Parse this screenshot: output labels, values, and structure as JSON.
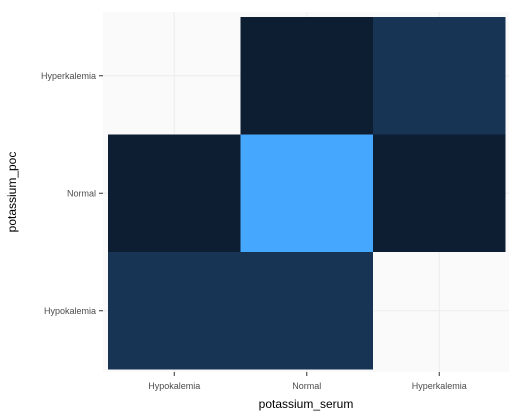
{
  "chart_data": {
    "type": "heatmap",
    "x_categories": [
      "Hypokalemia",
      "Normal",
      "Hyperkalemia"
    ],
    "y_categories": [
      "Hypokalemia",
      "Normal",
      "Hyperkalemia"
    ],
    "xlabel": "potassium_serum",
    "ylabel": "potassium_poc",
    "grid": true,
    "legend": "none",
    "cells": [
      {
        "x": "Hypokalemia",
        "y": "Hypokalemia",
        "fill": "#173454"
      },
      {
        "x": "Normal",
        "y": "Hypokalemia",
        "fill": "#173454"
      },
      {
        "x": "Hypokalemia",
        "y": "Normal",
        "fill": "#0d1e33"
      },
      {
        "x": "Normal",
        "y": "Normal",
        "fill": "#46a7ff"
      },
      {
        "x": "Hyperkalemia",
        "y": "Normal",
        "fill": "#0d1e33"
      },
      {
        "x": "Normal",
        "y": "Hyperkalemia",
        "fill": "#0d1e33"
      },
      {
        "x": "Hyperkalemia",
        "y": "Hyperkalemia",
        "fill": "#173454"
      }
    ]
  },
  "colors": {
    "panel_background": "#fafafa",
    "grid_line": "#ececec",
    "tick_label": "#4d4d4d"
  }
}
